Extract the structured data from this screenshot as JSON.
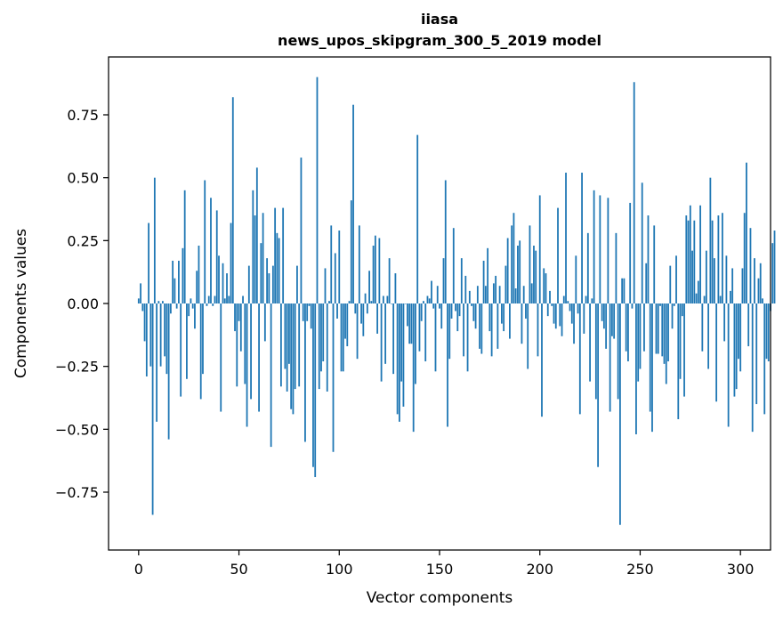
{
  "chart_data": {
    "type": "bar",
    "title_line1": "iiasa",
    "title_line2": "news_upos_skipgram_300_5_2019 model",
    "xlabel": "Vector components",
    "ylabel": "Components values",
    "xlim": [
      -15,
      315
    ],
    "ylim": [
      -0.98,
      0.98
    ],
    "xticks": [
      0,
      50,
      100,
      150,
      200,
      250,
      300
    ],
    "xtick_labels": [
      "0",
      "50",
      "100",
      "150",
      "200",
      "250",
      "300"
    ],
    "yticks": [
      -0.75,
      -0.5,
      -0.25,
      0.0,
      0.25,
      0.5,
      0.75
    ],
    "ytick_labels": [
      "−0.75",
      "−0.50",
      "−0.25",
      "0.00",
      "0.25",
      "0.50",
      "0.75"
    ],
    "bar_color": "#1f77b4",
    "values": [
      0.02,
      0.08,
      -0.03,
      -0.15,
      -0.29,
      0.32,
      -0.25,
      -0.84,
      0.5,
      -0.47,
      0.01,
      -0.25,
      0.01,
      -0.21,
      -0.28,
      -0.54,
      -0.04,
      0.17,
      0.1,
      -0.02,
      0.17,
      -0.37,
      0.22,
      0.45,
      -0.3,
      -0.05,
      0.02,
      -0.02,
      -0.1,
      0.13,
      0.23,
      -0.38,
      -0.28,
      0.49,
      -0.01,
      0.03,
      0.42,
      -0.01,
      0.03,
      0.37,
      0.19,
      -0.43,
      0.16,
      0.02,
      0.12,
      0.03,
      0.32,
      0.82,
      -0.11,
      -0.33,
      -0.07,
      -0.19,
      0.03,
      -0.32,
      -0.49,
      0.15,
      -0.38,
      0.45,
      0.35,
      0.54,
      -0.43,
      0.24,
      0.36,
      -0.15,
      0.18,
      0.12,
      -0.57,
      0.15,
      0.38,
      0.28,
      0.26,
      -0.33,
      0.38,
      -0.26,
      -0.35,
      -0.24,
      -0.42,
      -0.44,
      -0.34,
      0.15,
      -0.33,
      0.58,
      -0.07,
      -0.55,
      -0.07,
      -0.01,
      -0.1,
      -0.65,
      -0.69,
      0.9,
      -0.34,
      -0.27,
      -0.23,
      0.14,
      -0.35,
      0.01,
      0.31,
      -0.59,
      0.2,
      -0.06,
      0.29,
      -0.27,
      -0.27,
      -0.14,
      -0.17,
      0.01,
      0.41,
      0.79,
      -0.04,
      -0.22,
      0.31,
      -0.08,
      -0.13,
      0.04,
      -0.04,
      0.13,
      0.01,
      0.23,
      0.27,
      -0.12,
      0.26,
      -0.31,
      0.03,
      -0.24,
      0.03,
      0.18,
      0.0,
      -0.28,
      0.12,
      -0.44,
      -0.47,
      -0.31,
      -0.41,
      0.0,
      -0.09,
      -0.16,
      -0.16,
      -0.51,
      -0.32,
      0.67,
      -0.19,
      -0.07,
      0.01,
      -0.23,
      0.03,
      0.02,
      0.09,
      -0.02,
      -0.27,
      0.07,
      -0.02,
      -0.1,
      0.18,
      0.49,
      -0.49,
      -0.22,
      -0.06,
      0.3,
      -0.03,
      -0.11,
      -0.05,
      0.18,
      -0.21,
      0.11,
      -0.27,
      0.05,
      -0.01,
      -0.07,
      -0.1,
      0.07,
      -0.18,
      -0.2,
      0.17,
      0.07,
      0.22,
      -0.11,
      -0.21,
      0.08,
      0.11,
      -0.18,
      0.07,
      -0.08,
      -0.11,
      0.15,
      0.26,
      -0.14,
      0.31,
      0.36,
      0.06,
      0.23,
      0.25,
      -0.16,
      0.07,
      -0.06,
      -0.26,
      0.31,
      0.08,
      0.23,
      0.21,
      -0.21,
      0.43,
      -0.45,
      0.14,
      0.12,
      -0.05,
      0.05,
      -0.01,
      -0.08,
      -0.1,
      0.38,
      -0.09,
      -0.13,
      0.03,
      0.52,
      0.01,
      -0.03,
      -0.08,
      -0.16,
      0.19,
      -0.04,
      -0.44,
      0.52,
      -0.12,
      0.03,
      0.28,
      -0.31,
      0.02,
      0.45,
      -0.38,
      -0.65,
      0.43,
      -0.07,
      -0.1,
      -0.18,
      0.42,
      -0.43,
      -0.13,
      -0.14,
      0.28,
      -0.38,
      -0.88,
      0.1,
      0.1,
      -0.19,
      -0.23,
      0.4,
      -0.02,
      0.88,
      -0.52,
      -0.31,
      -0.26,
      0.48,
      -0.19,
      0.16,
      0.35,
      -0.43,
      -0.51,
      0.31,
      -0.2,
      -0.2,
      -0.01,
      -0.21,
      -0.24,
      -0.32,
      -0.23,
      0.15,
      -0.1,
      -0.01,
      0.19,
      -0.46,
      -0.3,
      -0.05,
      -0.37,
      0.35,
      0.33,
      0.39,
      0.21,
      0.33,
      0.04,
      0.09,
      0.39,
      -0.19,
      0.03,
      0.21,
      -0.26,
      0.5,
      0.33,
      0.18,
      -0.39,
      0.35,
      0.03,
      0.36,
      -0.15,
      0.19,
      -0.49,
      0.05,
      0.14,
      -0.37,
      -0.34,
      -0.22,
      -0.27,
      0.14,
      0.36,
      0.56,
      -0.17,
      0.3,
      -0.51,
      0.18,
      -0.4,
      0.1,
      0.16,
      0.02,
      -0.44,
      -0.22,
      -0.23,
      -0.03,
      0.24,
      0.29
    ]
  }
}
